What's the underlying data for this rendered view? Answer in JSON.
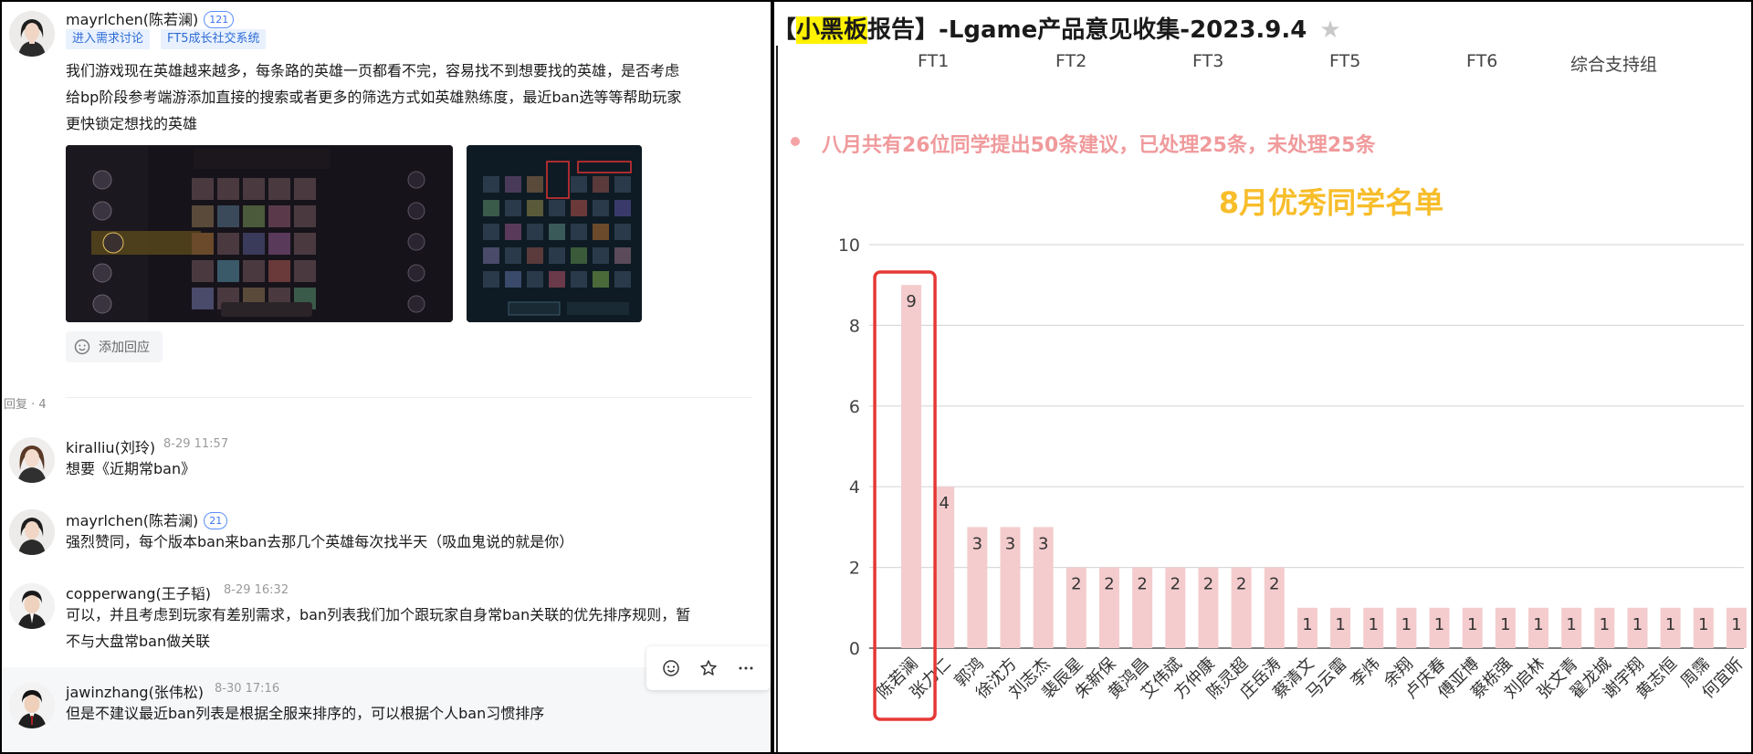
{
  "post": {
    "author": "mayrlchen(陈若澜)",
    "level": "121",
    "tags": [
      "进入需求讨论",
      "FT5成长社交系统"
    ],
    "text_lines": [
      "我们游戏现在英雄越来越多，每条路的英雄一页都看不完，容易找不到想要找的英雄，是否考虑",
      "给bp阶段参考端游添加直接的搜索或者更多的筛选方式如英雄熟练度，最近ban选等等帮助玩家",
      "更快锁定想找的英雄"
    ],
    "add_reply_label": "添加回应"
  },
  "replies_label": "回复 · 4",
  "comments": [
    {
      "author": "kiralliu(刘玲)",
      "time": "8-29 11:57",
      "level": "",
      "lines": [
        "想要《近期常ban》"
      ]
    },
    {
      "author": "mayrlchen(陈若澜)",
      "time": "",
      "level": "21",
      "lines": [
        "强烈赞同，每个版本ban来ban去那几个英雄每次找半天（吸血鬼说的就是你）"
      ]
    },
    {
      "author": "copperwang(王子韬)",
      "time": "8-29 16:32",
      "level": "",
      "lines": [
        "可以，并且考虑到玩家有差别需求，ban列表我们加个跟玩家自身常ban关联的优先排序规则，暂",
        "不与大盘常ban做关联"
      ]
    },
    {
      "author": "jawinzhang(张伟松)",
      "time": "8-30 17:16",
      "level": "",
      "lines": [
        "但是不建议最近ban列表是根据全服来排序的，可以根据个人ban习惯排序"
      ]
    }
  ],
  "report": {
    "title_highlight": "小黑板",
    "title_rest": "报告】-Lgame产品意见收集-2023.9.4",
    "title_prefix": "【",
    "tabs": [
      "FT1",
      "FT2",
      "FT3",
      "FT5",
      "FT6",
      "综合支持组"
    ],
    "summary": "八月共有26位同学提出50条建议，已处理25条，未处理25条"
  },
  "chart_data": {
    "type": "bar",
    "title": "8月优秀同学名单",
    "categories": [
      "陈若澜",
      "张力仁",
      "郭鸿",
      "徐沈方",
      "刘志杰",
      "裴辰星",
      "朱新保",
      "黄鸿昌",
      "艾伟斌",
      "方仲康",
      "陈灵超",
      "庄岳涛",
      "蔡清文",
      "马云雷",
      "李炜",
      "余翔",
      "卢庆春",
      "傅亚博",
      "蔡栋强",
      "刘启林",
      "张文青",
      "翟龙城",
      "谢宇翔",
      "黄志恒",
      "周霈",
      "何宜昕"
    ],
    "values": [
      9,
      4,
      3,
      3,
      3,
      2,
      2,
      2,
      2,
      2,
      2,
      2,
      1,
      1,
      1,
      1,
      1,
      1,
      1,
      1,
      1,
      1,
      1,
      1,
      1,
      1
    ],
    "yticks": [
      0,
      2,
      4,
      6,
      8,
      10
    ],
    "ylim": [
      0,
      10
    ],
    "bar_color": "#f4cccd",
    "highlight_color": "#e53935",
    "grid": true
  }
}
